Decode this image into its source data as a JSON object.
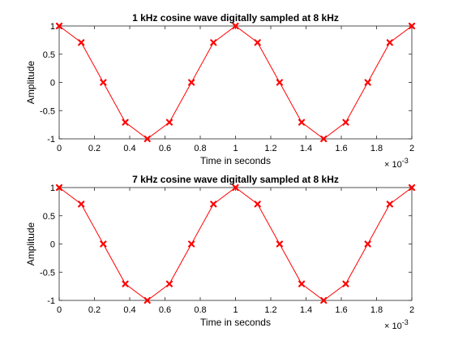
{
  "colors": {
    "series": "#ff0000",
    "axes": "#262626",
    "background": "#ffffff"
  },
  "chart_data": [
    {
      "type": "line",
      "title": "1 kHz cosine wave digitally sampled at 8 kHz",
      "xlabel": "Time in seconds",
      "ylabel": "Amplitude",
      "x_exponent_base": "× 10",
      "x_exponent_power": "-3",
      "xlim": [
        0,
        2
      ],
      "ylim": [
        -1,
        1
      ],
      "grid": false,
      "marker": "x",
      "x": [
        0,
        0.125,
        0.25,
        0.375,
        0.5,
        0.625,
        0.75,
        0.875,
        1,
        1.125,
        1.25,
        1.375,
        1.5,
        1.625,
        1.75,
        1.875,
        2
      ],
      "y": [
        1,
        0.7071,
        0,
        -0.7071,
        -1,
        -0.7071,
        0,
        0.7071,
        1,
        0.7071,
        0,
        -0.7071,
        -1,
        -0.7071,
        0,
        0.7071,
        1
      ],
      "xticks": [
        0,
        0.2,
        0.4,
        0.6,
        0.8,
        1,
        1.2,
        1.4,
        1.6,
        1.8,
        2
      ],
      "xtick_labels": [
        "0",
        "0.2",
        "0.4",
        "0.6",
        "0.8",
        "1",
        "1.2",
        "1.4",
        "1.6",
        "1.8",
        "2"
      ],
      "yticks": [
        -1,
        -0.5,
        0,
        0.5,
        1
      ],
      "ytick_labels": [
        "-1",
        "-0.5",
        "0",
        "0.5",
        "1"
      ]
    },
    {
      "type": "line",
      "title": "7 kHz cosine wave digitally sampled at 8 kHz",
      "xlabel": "Time in seconds",
      "ylabel": "Amplitude",
      "x_exponent_base": "× 10",
      "x_exponent_power": "-3",
      "xlim": [
        0,
        2
      ],
      "ylim": [
        -1,
        1
      ],
      "grid": false,
      "marker": "x",
      "x": [
        0,
        0.125,
        0.25,
        0.375,
        0.5,
        0.625,
        0.75,
        0.875,
        1,
        1.125,
        1.25,
        1.375,
        1.5,
        1.625,
        1.75,
        1.875,
        2
      ],
      "y": [
        1,
        0.7071,
        0,
        -0.7071,
        -1,
        -0.7071,
        0,
        0.7071,
        1,
        0.7071,
        0,
        -0.7071,
        -1,
        -0.7071,
        0,
        0.7071,
        1
      ],
      "xticks": [
        0,
        0.2,
        0.4,
        0.6,
        0.8,
        1,
        1.2,
        1.4,
        1.6,
        1.8,
        2
      ],
      "xtick_labels": [
        "0",
        "0.2",
        "0.4",
        "0.6",
        "0.8",
        "1",
        "1.2",
        "1.4",
        "1.6",
        "1.8",
        "2"
      ],
      "yticks": [
        -1,
        -0.5,
        0,
        0.5,
        1
      ],
      "ytick_labels": [
        "-1",
        "-0.5",
        "0",
        "0.5",
        "1"
      ]
    }
  ]
}
